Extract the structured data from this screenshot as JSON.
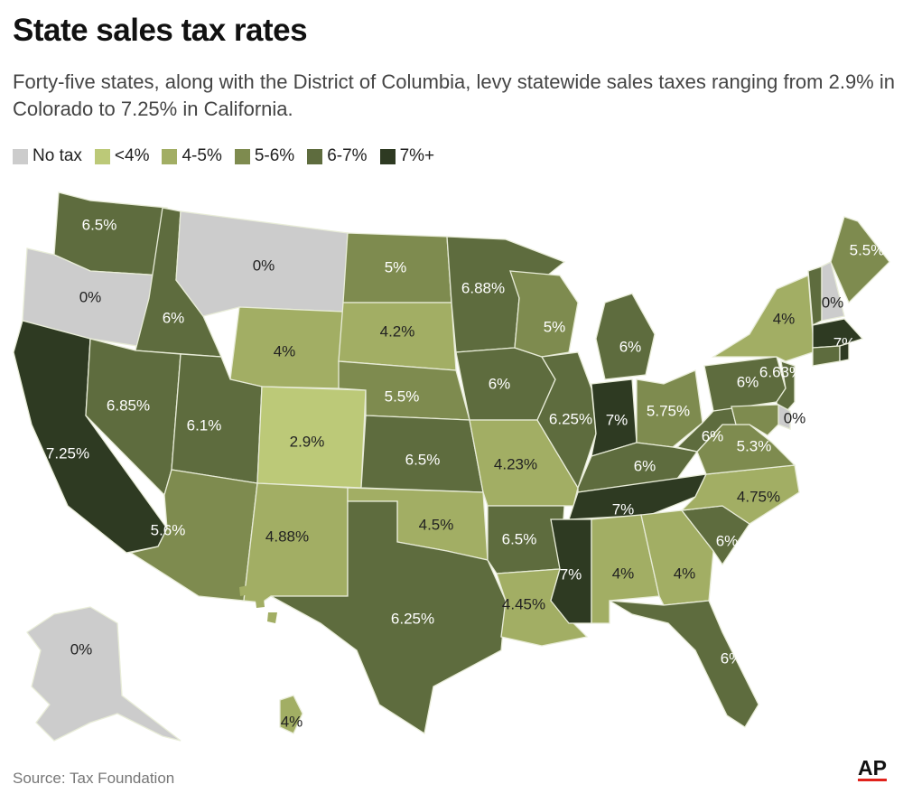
{
  "title": "State sales tax rates",
  "subtitle": "Forty-five states, along with the District of Columbia, levy statewide sales taxes ranging from 2.9% in Colorado to 7.25% in California.",
  "legend": [
    {
      "label": "No tax",
      "color": "#cccccc"
    },
    {
      "label": "<4%",
      "color": "#bcc978"
    },
    {
      "label": "4-5%",
      "color": "#a2ae64"
    },
    {
      "label": "5-6%",
      "color": "#7e8b4f"
    },
    {
      "label": "6-7%",
      "color": "#5e6c3e"
    },
    {
      "label": "7%+",
      "color": "#2e3a22"
    }
  ],
  "states": [
    {
      "label": "6.5%",
      "cat": 4
    },
    {
      "label": "0%",
      "cat": 0
    },
    {
      "label": "7.25%",
      "cat": 5
    },
    {
      "label": "6%",
      "cat": 4
    },
    {
      "label": "6.85%",
      "cat": 4
    },
    {
      "label": "0%",
      "cat": 0
    },
    {
      "label": "4%",
      "cat": 2
    },
    {
      "label": "6.1%",
      "cat": 4
    },
    {
      "label": "2.9%",
      "cat": 1
    },
    {
      "label": "5.6%",
      "cat": 3
    },
    {
      "label": "4.88%",
      "cat": 2
    },
    {
      "label": "5%",
      "cat": 3
    },
    {
      "label": "4.2%",
      "cat": 2
    },
    {
      "label": "5.5%",
      "cat": 3
    },
    {
      "label": "6.5%",
      "cat": 4
    },
    {
      "label": "4.5%",
      "cat": 2
    },
    {
      "label": "6.25%",
      "cat": 4
    },
    {
      "label": "6.88%",
      "cat": 4
    },
    {
      "label": "6%",
      "cat": 4
    },
    {
      "label": "4.23%",
      "cat": 2
    },
    {
      "label": "6.5%",
      "cat": 4
    },
    {
      "label": "4.45%",
      "cat": 2
    },
    {
      "label": "5%",
      "cat": 3
    },
    {
      "label": "6.25%",
      "cat": 4
    },
    {
      "label": "6%",
      "cat": 4
    },
    {
      "label": "7%",
      "cat": 5
    },
    {
      "label": "5.75%",
      "cat": 3
    },
    {
      "label": "6%",
      "cat": 4
    },
    {
      "label": "7%",
      "cat": 5
    },
    {
      "label": "7%",
      "cat": 5
    },
    {
      "label": "4%",
      "cat": 2
    },
    {
      "label": "4%",
      "cat": 2
    },
    {
      "label": "6%",
      "cat": 4
    },
    {
      "label": "6%",
      "cat": 4
    },
    {
      "label": "4.75%",
      "cat": 2
    },
    {
      "label": "5.3%",
      "cat": 3
    },
    {
      "label": "6%",
      "cat": 4
    },
    {
      "label": "6%",
      "cat": 4
    },
    {
      "label": "4%",
      "cat": 2
    },
    {
      "label": "6.63%",
      "cat": 4
    },
    {
      "label": "0%",
      "cat": 0
    },
    {
      "label": "",
      "cat": 3
    },
    {
      "label": "",
      "cat": 4
    },
    {
      "label": "0%",
      "cat": 0
    },
    {
      "label": "5.5%",
      "cat": 3
    },
    {
      "label": "7%",
      "cat": 5
    },
    {
      "label": "",
      "cat": 4
    },
    {
      "label": "",
      "cat": 5
    },
    {
      "label": "0%",
      "cat": 0
    },
    {
      "label": "4%",
      "cat": 2
    }
  ],
  "source": "Source: Tax Foundation",
  "credit": "AP"
}
